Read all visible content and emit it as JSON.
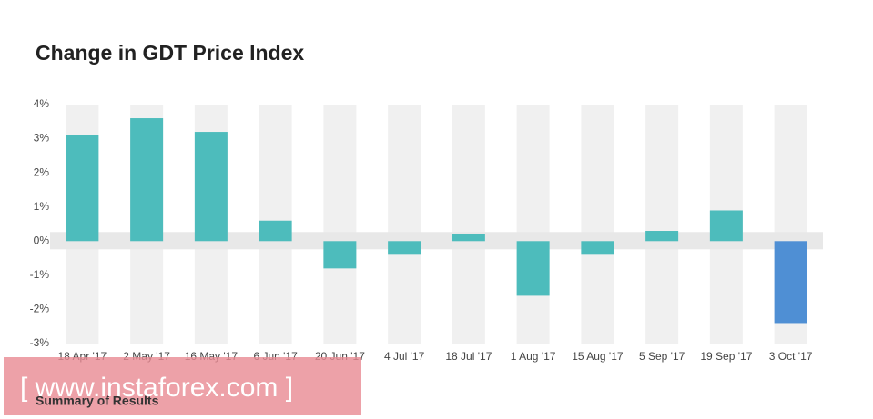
{
  "chart_data": {
    "type": "bar",
    "title": "Change in GDT Price Index",
    "categories": [
      "18 Apr '17",
      "2 May '17",
      "16 May '17",
      "6 Jun '17",
      "20 Jun '17",
      "4 Jul '17",
      "18 Jul '17",
      "1 Aug '17",
      "15 Aug '17",
      "5 Sep '17",
      "19 Sep '17",
      "3 Oct '17"
    ],
    "values": [
      3.1,
      3.6,
      3.2,
      0.6,
      -0.8,
      -0.4,
      0.2,
      -1.6,
      -0.4,
      0.3,
      0.9,
      -2.4
    ],
    "colors": [
      "#4dbcbc",
      "#4dbcbc",
      "#4dbcbc",
      "#4dbcbc",
      "#4dbcbc",
      "#4dbcbc",
      "#4dbcbc",
      "#4dbcbc",
      "#4dbcbc",
      "#4dbcbc",
      "#4dbcbc",
      "#4f8fd4"
    ],
    "ylim": [
      -3,
      4
    ],
    "yticks": [
      {
        "value": -3,
        "label": "-3%"
      },
      {
        "value": -2,
        "label": "-2%"
      },
      {
        "value": -1,
        "label": "-1%"
      },
      {
        "value": 0,
        "label": "0%"
      },
      {
        "value": 1,
        "label": "1%"
      },
      {
        "value": 2,
        "label": "2%"
      },
      {
        "value": 3,
        "label": "3%"
      },
      {
        "value": 4,
        "label": "4%"
      }
    ]
  },
  "footer": {
    "heading": "Summary of Results",
    "watermark": "[ www.instaforex.com ]"
  }
}
